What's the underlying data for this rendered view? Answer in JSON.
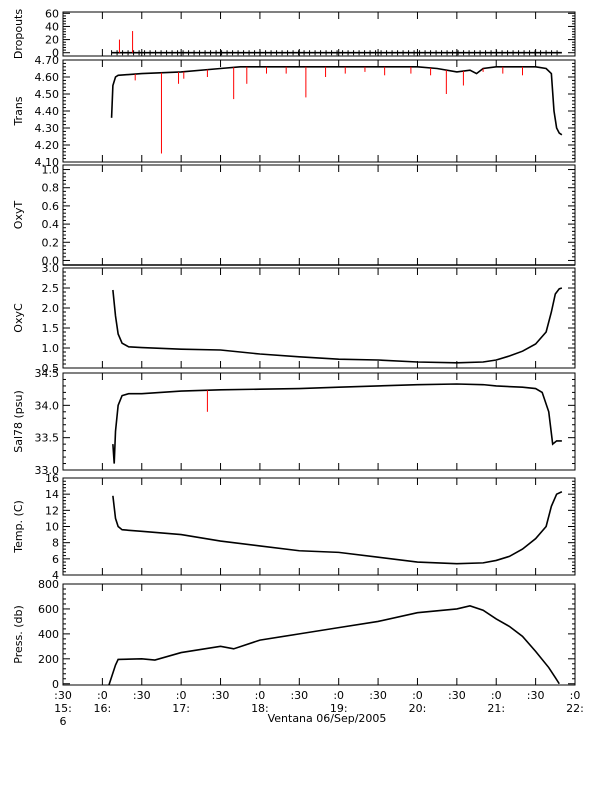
{
  "figure": {
    "xlabel": "Ventana 06/Sep/2005",
    "x_ticks": [
      {
        "t": "15:30",
        "l1": ":30",
        "l2": "15:",
        "l3": "6"
      },
      {
        "t": "16:00",
        "l1": ":0",
        "l2": "16:",
        "l3": ""
      },
      {
        "t": "16:30",
        "l1": ":30",
        "l2": "",
        "l3": ""
      },
      {
        "t": "17:00",
        "l1": ":0",
        "l2": "17:",
        "l3": ""
      },
      {
        "t": "17:30",
        "l1": ":30",
        "l2": "",
        "l3": ""
      },
      {
        "t": "18:00",
        "l1": ":0",
        "l2": "18:",
        "l3": ""
      },
      {
        "t": "18:30",
        "l1": ":30",
        "l2": "",
        "l3": ""
      },
      {
        "t": "19:00",
        "l1": ":0",
        "l2": "19:",
        "l3": ""
      },
      {
        "t": "19:30",
        "l1": ":30",
        "l2": "",
        "l3": ""
      },
      {
        "t": "20:00",
        "l1": ":0",
        "l2": "20:",
        "l3": ""
      },
      {
        "t": "20:30",
        "l1": ":30",
        "l2": "",
        "l3": ""
      },
      {
        "t": "21:00",
        "l1": ":0",
        "l2": "21:",
        "l3": ""
      },
      {
        "t": "21:30",
        "l1": ":30",
        "l2": "",
        "l3": ""
      },
      {
        "t": "22:00",
        "l1": ":0",
        "l2": "22:",
        "l3": ""
      }
    ],
    "xlim": [
      "15:30",
      "22:00"
    ],
    "colors": {
      "main": "#000000",
      "raw": "#ff0000"
    }
  },
  "chart_data": [
    {
      "type": "line",
      "ylabel": "Dropouts",
      "ylim": [
        -5,
        62
      ],
      "yticks": [
        0,
        20,
        40,
        60
      ],
      "series": [
        {
          "style": "main-markers",
          "x": [
            "16:07",
            "21:50"
          ],
          "values": [
            0,
            0
          ]
        },
        {
          "style": "raw-spikes",
          "x": [
            "16:13",
            "16:23"
          ],
          "values": [
            20,
            33
          ]
        }
      ]
    },
    {
      "type": "line",
      "ylabel": "Trans",
      "ylim": [
        4.1,
        4.7
      ],
      "yticks": [
        "4.10",
        "4.20",
        "4.30",
        "4.40",
        "4.50",
        "4.60",
        "4.70"
      ],
      "series": [
        {
          "style": "main",
          "x": [
            "16:07",
            "16:08",
            "16:10",
            "16:12",
            "16:30",
            "17:00",
            "17:30",
            "17:45",
            "18:00",
            "18:30",
            "19:00",
            "19:30",
            "20:00",
            "20:15",
            "20:30",
            "20:40",
            "20:45",
            "20:50",
            "21:00",
            "21:30",
            "21:38",
            "21:42",
            "21:44",
            "21:46",
            "21:48",
            "21:50"
          ],
          "values": [
            4.36,
            4.55,
            4.6,
            4.61,
            4.62,
            4.63,
            4.65,
            4.66,
            4.66,
            4.66,
            4.66,
            4.66,
            4.66,
            4.65,
            4.63,
            4.64,
            4.62,
            4.65,
            4.66,
            4.66,
            4.65,
            4.62,
            4.4,
            4.3,
            4.27,
            4.26
          ]
        },
        {
          "style": "raw-drops",
          "x": [
            "16:25",
            "16:45",
            "16:58",
            "17:02",
            "17:20",
            "17:40",
            "17:50",
            "18:05",
            "18:20",
            "18:35",
            "18:50",
            "19:05",
            "19:20",
            "19:35",
            "19:55",
            "20:10",
            "20:22",
            "20:35",
            "20:50",
            "21:05",
            "21:20"
          ],
          "values": [
            4.58,
            4.15,
            4.56,
            4.59,
            4.6,
            4.47,
            4.56,
            4.62,
            4.62,
            4.48,
            4.6,
            4.62,
            4.63,
            4.61,
            4.62,
            4.61,
            4.5,
            4.55,
            4.63,
            4.62,
            4.61
          ]
        }
      ]
    },
    {
      "type": "line",
      "ylabel": "OxyT",
      "ylim": [
        -0.05,
        1.05
      ],
      "yticks": [
        "0.0",
        "0.2",
        "0.4",
        "0.6",
        "0.8",
        "1.0"
      ],
      "series": [
        {
          "style": "main",
          "x": [
            "15:30",
            "22:00"
          ],
          "values": [
            -0.05,
            -0.05
          ]
        }
      ]
    },
    {
      "type": "line",
      "ylabel": "OxyC",
      "ylim": [
        0.5,
        3.0
      ],
      "yticks": [
        "0.5",
        "1.0",
        "1.5",
        "2.0",
        "2.5",
        "3.0"
      ],
      "series": [
        {
          "style": "main",
          "x": [
            "16:08",
            "16:10",
            "16:12",
            "16:15",
            "16:20",
            "16:30",
            "17:00",
            "17:30",
            "18:00",
            "18:30",
            "19:00",
            "19:30",
            "20:00",
            "20:30",
            "20:50",
            "21:00",
            "21:10",
            "21:20",
            "21:30",
            "21:38",
            "21:42",
            "21:45",
            "21:48",
            "21:50"
          ],
          "values": [
            2.45,
            1.8,
            1.35,
            1.12,
            1.03,
            1.01,
            0.97,
            0.95,
            0.85,
            0.78,
            0.72,
            0.7,
            0.65,
            0.63,
            0.65,
            0.7,
            0.8,
            0.92,
            1.1,
            1.4,
            1.9,
            2.35,
            2.48,
            2.5
          ]
        }
      ]
    },
    {
      "type": "line",
      "ylabel": "Sal78 (psu)",
      "ylim": [
        33.0,
        34.5
      ],
      "yticks": [
        "33.0",
        "33.5",
        "34.0",
        "34.5"
      ],
      "series": [
        {
          "style": "main",
          "x": [
            "16:08",
            "16:09",
            "16:10",
            "16:12",
            "16:15",
            "16:20",
            "16:30",
            "17:00",
            "17:30",
            "18:00",
            "18:30",
            "19:00",
            "19:30",
            "20:00",
            "20:30",
            "20:50",
            "21:00",
            "21:20",
            "21:30",
            "21:35",
            "21:40",
            "21:43",
            "21:46",
            "21:50"
          ],
          "values": [
            33.4,
            33.1,
            33.6,
            34.0,
            34.15,
            34.18,
            34.18,
            34.22,
            34.24,
            34.25,
            34.26,
            34.28,
            34.3,
            34.32,
            34.33,
            34.32,
            34.3,
            34.28,
            34.26,
            34.2,
            33.9,
            33.4,
            33.45,
            33.45
          ]
        },
        {
          "style": "raw-drops",
          "x": [
            "17:20"
          ],
          "values": [
            33.9
          ]
        }
      ]
    },
    {
      "type": "line",
      "ylabel": "Temp. (C)",
      "ylim": [
        4,
        16
      ],
      "yticks": [
        4,
        6,
        8,
        10,
        12,
        14,
        16
      ],
      "series": [
        {
          "style": "main",
          "x": [
            "16:08",
            "16:10",
            "16:12",
            "16:15",
            "16:30",
            "17:00",
            "17:30",
            "18:00",
            "18:30",
            "19:00",
            "19:30",
            "20:00",
            "20:30",
            "20:50",
            "21:00",
            "21:10",
            "21:20",
            "21:30",
            "21:38",
            "21:42",
            "21:46",
            "21:50"
          ],
          "values": [
            13.8,
            11.0,
            10.0,
            9.6,
            9.4,
            9.0,
            8.2,
            7.6,
            7.0,
            6.8,
            6.2,
            5.6,
            5.4,
            5.5,
            5.8,
            6.3,
            7.2,
            8.5,
            10.0,
            12.5,
            14.0,
            14.3
          ]
        }
      ]
    },
    {
      "type": "line",
      "ylabel": "Press. (db)",
      "ylim": [
        -10,
        800
      ],
      "yticks": [
        0,
        200,
        400,
        600,
        800
      ],
      "series": [
        {
          "style": "main",
          "x": [
            "16:05",
            "16:10",
            "16:12",
            "16:30",
            "16:40",
            "17:00",
            "17:30",
            "17:40",
            "18:00",
            "18:30",
            "19:00",
            "19:30",
            "20:00",
            "20:30",
            "20:40",
            "20:50",
            "21:00",
            "21:10",
            "21:20",
            "21:30",
            "21:40",
            "21:45",
            "21:48"
          ],
          "values": [
            -10,
            150,
            195,
            200,
            190,
            250,
            300,
            280,
            350,
            400,
            450,
            500,
            570,
            600,
            625,
            590,
            520,
            460,
            380,
            260,
            130,
            50,
            0
          ]
        }
      ]
    }
  ]
}
